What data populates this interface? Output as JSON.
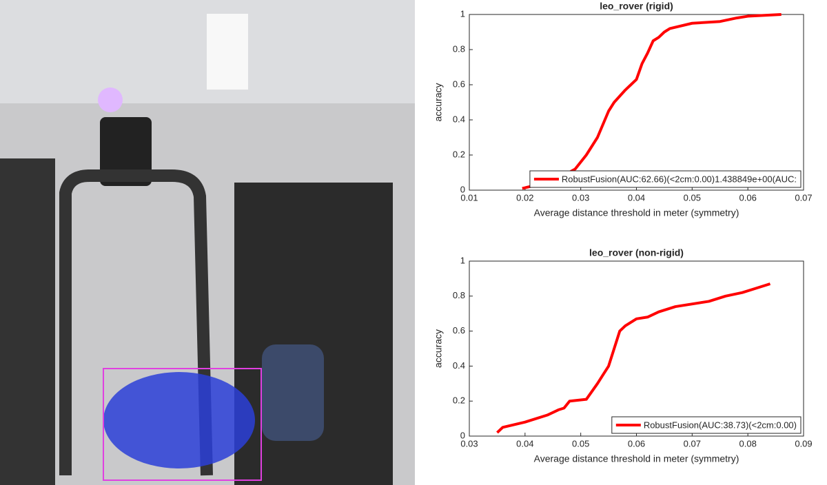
{
  "chart_data": [
    {
      "type": "line",
      "title": "leo_rover (rigid)",
      "xlabel": "Average distance threshold in meter (symmetry)",
      "ylabel": "accuracy",
      "xlim": [
        0.01,
        0.07
      ],
      "xticks": [
        0.01,
        0.02,
        0.03,
        0.04,
        0.05,
        0.06,
        0.07
      ],
      "ylim": [
        0,
        1
      ],
      "yticks": [
        0,
        0.2,
        0.4,
        0.6,
        0.8,
        1
      ],
      "legend": "southeast",
      "series": [
        {
          "name": "RobustFusion(AUC:62.66)(<2cm:0.00)1.438849e+00(AUC:",
          "color": "#ff0000",
          "x": [
            0.0195,
            0.025,
            0.029,
            0.031,
            0.033,
            0.035,
            0.036,
            0.038,
            0.039,
            0.04,
            0.041,
            0.042,
            0.043,
            0.044,
            0.045,
            0.046,
            0.05,
            0.055,
            0.058,
            0.06,
            0.066
          ],
          "values": [
            0.01,
            0.05,
            0.12,
            0.2,
            0.3,
            0.45,
            0.5,
            0.57,
            0.6,
            0.63,
            0.72,
            0.78,
            0.85,
            0.87,
            0.9,
            0.92,
            0.95,
            0.96,
            0.98,
            0.99,
            1.0
          ]
        }
      ]
    },
    {
      "type": "line",
      "title": "leo_rover (non-rigid)",
      "xlabel": "Average distance threshold in meter (symmetry)",
      "ylabel": "accuracy",
      "xlim": [
        0.03,
        0.09
      ],
      "xticks": [
        0.03,
        0.04,
        0.05,
        0.06,
        0.07,
        0.08,
        0.09
      ],
      "ylim": [
        0,
        1
      ],
      "yticks": [
        0,
        0.2,
        0.4,
        0.6,
        0.8,
        1
      ],
      "legend": "southeast",
      "series": [
        {
          "name": "RobustFusion(AUC:38.73)(<2cm:0.00)",
          "color": "#ff0000",
          "x": [
            0.035,
            0.036,
            0.04,
            0.044,
            0.046,
            0.047,
            0.048,
            0.051,
            0.053,
            0.054,
            0.055,
            0.056,
            0.057,
            0.058,
            0.06,
            0.062,
            0.064,
            0.067,
            0.073,
            0.076,
            0.079,
            0.081,
            0.084
          ],
          "values": [
            0.02,
            0.05,
            0.08,
            0.12,
            0.15,
            0.16,
            0.2,
            0.21,
            0.3,
            0.35,
            0.4,
            0.5,
            0.6,
            0.63,
            0.67,
            0.68,
            0.71,
            0.74,
            0.77,
            0.8,
            0.82,
            0.84,
            0.87
          ]
        }
      ]
    }
  ]
}
